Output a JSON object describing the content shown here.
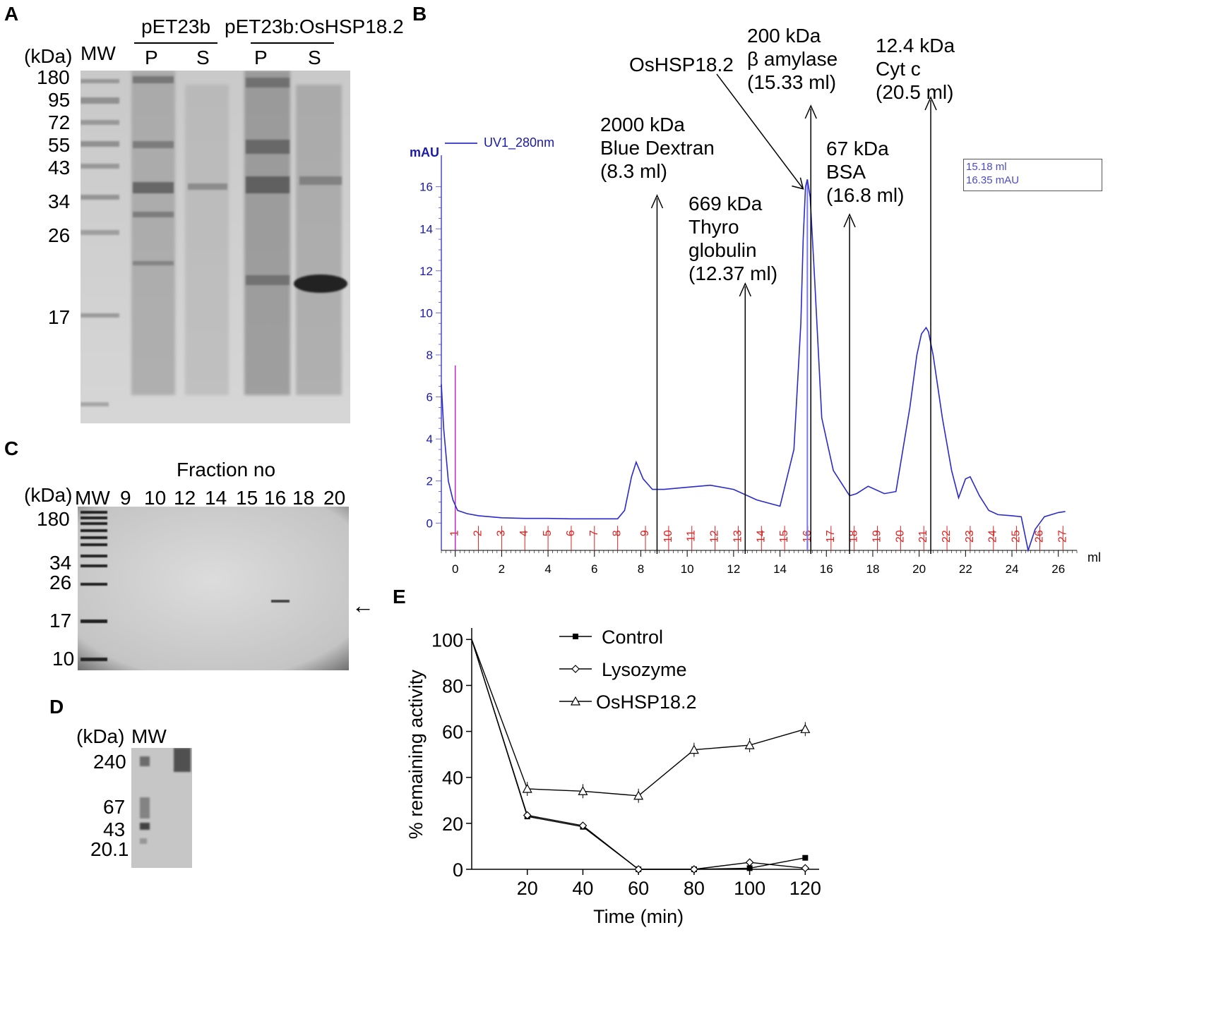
{
  "panels": {
    "A": "A",
    "B": "B",
    "C": "C",
    "D": "D",
    "E": "E"
  },
  "panelA": {
    "header_left": "pET23b",
    "header_right": "pET23b:OsHSP18.2",
    "kda_label": "(kDa)",
    "mw_label": "MW",
    "lanes": [
      "P",
      "S",
      "P",
      "S"
    ],
    "markers": [
      "180",
      "95",
      "72",
      "55",
      "43",
      "34",
      "26",
      "17"
    ]
  },
  "panelB": {
    "y_axis_label": "mAU",
    "legend_label": "UV1_280nm",
    "x_axis_unit": "ml",
    "readout_ml": "15.18 ml",
    "readout_mau": "16.35  mAU",
    "annotations": [
      {
        "lines": [
          "2000 kDa",
          "Blue Dextran",
          "(8.3 ml)"
        ]
      },
      {
        "lines": [
          "669 kDa",
          "Thyro",
          "globulin",
          "(12.37 ml)"
        ]
      },
      {
        "lines": [
          "OsHSP18.2"
        ]
      },
      {
        "lines": [
          "200 kDa",
          "β amylase",
          "(15.33 ml)"
        ]
      },
      {
        "lines": [
          "67 kDa",
          " BSA",
          "(16.8 ml)"
        ]
      },
      {
        "lines": [
          "12.4 kDa",
          "Cyt c",
          "(20.5 ml)"
        ]
      }
    ],
    "chart_data": {
      "type": "line",
      "x_label": "ml",
      "y_label": "mAU",
      "xlim": [
        -0.6,
        26.8
      ],
      "ylim": [
        -1.3,
        17.5
      ],
      "x_ticks": [
        0,
        2,
        4,
        6,
        8,
        10,
        12,
        14,
        16,
        18,
        20,
        22,
        24,
        26
      ],
      "y_ticks": [
        0,
        2,
        4,
        6,
        8,
        10,
        12,
        14,
        16
      ],
      "fractions": [
        "1",
        "2",
        "3",
        "4",
        "5",
        "6",
        "7",
        "8",
        "9",
        "10",
        "11",
        "12",
        "13",
        "14",
        "15",
        "16",
        "17",
        "18",
        "19",
        "20",
        "21",
        "22",
        "23",
        "24",
        "25",
        "26",
        "27"
      ],
      "fraction_x": [
        0,
        1,
        2,
        3,
        4,
        5,
        6,
        7,
        8.2,
        9.2,
        10.2,
        11.2,
        12.2,
        13.2,
        14.2,
        15.2,
        16.2,
        17.2,
        18.2,
        19.2,
        20.2,
        21.2,
        22.2,
        23.2,
        24.2,
        25.2,
        26.2
      ],
      "series": [
        {
          "name": "UV1_280nm",
          "x": [
            -0.6,
            -0.5,
            -0.3,
            -0.1,
            0.1,
            0.5,
            1,
            2,
            3,
            4,
            5,
            6,
            7,
            7.3,
            7.6,
            7.8,
            8.1,
            8.5,
            9,
            10,
            11,
            12,
            13,
            14,
            14.6,
            14.9,
            15.0,
            15.1,
            15.18,
            15.3,
            15.5,
            15.8,
            16.3,
            17.0,
            17.3,
            17.8,
            18.5,
            19.0,
            19.6,
            19.9,
            20.1,
            20.3,
            20.4,
            20.6,
            21.0,
            21.4,
            21.7,
            22.0,
            22.2,
            22.6,
            23.0,
            23.4,
            24.0,
            24.4,
            24.7,
            25.0,
            25.4,
            26.0,
            26.3
          ],
          "y": [
            6.6,
            4.5,
            2.0,
            1.1,
            0.6,
            0.45,
            0.35,
            0.25,
            0.22,
            0.22,
            0.2,
            0.2,
            0.2,
            0.6,
            2.2,
            2.9,
            2.1,
            1.6,
            1.6,
            1.7,
            1.8,
            1.6,
            1.1,
            0.8,
            3.5,
            9.5,
            13.5,
            16.0,
            16.35,
            15.5,
            11.5,
            5.0,
            2.5,
            1.3,
            1.4,
            1.75,
            1.4,
            1.5,
            5.5,
            8.0,
            9.0,
            9.3,
            9.1,
            8.0,
            5.0,
            2.5,
            1.2,
            2.1,
            2.2,
            1.3,
            0.6,
            0.4,
            0.35,
            0.3,
            -1.3,
            -0.3,
            0.3,
            0.5,
            0.55
          ]
        }
      ],
      "marker_line_x": 0,
      "marker_line_y": 7.5,
      "peak_marker_x": 15.18,
      "standard_arrows": [
        {
          "x": 8.7,
          "label_idx": 0
        },
        {
          "x": 12.5,
          "label_idx": 1
        },
        {
          "x": 15.33,
          "label_idx": 3
        },
        {
          "x": 17.0,
          "label_idx": 4
        },
        {
          "x": 20.5,
          "label_idx": 5
        }
      ]
    }
  },
  "panelC": {
    "title": "Fraction no",
    "kda_label": "(kDa)",
    "mw_label": "MW",
    "fractions": [
      "9",
      "10",
      "12",
      "14",
      "15",
      "16",
      "18",
      "20"
    ],
    "markers": [
      "180",
      "34",
      "26",
      "17",
      "10"
    ],
    "arrow": "←"
  },
  "panelD": {
    "kda_label": "(kDa)",
    "mw_label": "MW",
    "markers": [
      "240",
      "67",
      "43",
      "20.1"
    ]
  },
  "panelE": {
    "chart_data": {
      "type": "line",
      "xlabel": "Time (min)",
      "ylabel": "% remaining activity",
      "xlim": [
        0,
        125
      ],
      "ylim": [
        0,
        105
      ],
      "x_ticks": [
        20,
        40,
        60,
        80,
        100,
        120
      ],
      "y_ticks": [
        0,
        20,
        40,
        60,
        80,
        100
      ],
      "legend_position": "top",
      "series": [
        {
          "name": "Control",
          "marker": "square",
          "x": [
            0,
            20,
            40,
            60,
            80,
            100,
            120
          ],
          "y": [
            100,
            23,
            18.5,
            0,
            0,
            0.5,
            5
          ]
        },
        {
          "name": "Lysozyme",
          "marker": "diamond",
          "x": [
            0,
            20,
            40,
            60,
            80,
            100,
            120
          ],
          "y": [
            100,
            23.5,
            19,
            0,
            0,
            3,
            0.5
          ]
        },
        {
          "name": "OsHSP18.2",
          "marker": "triangle",
          "x": [
            0,
            20,
            40,
            60,
            80,
            100,
            120
          ],
          "y": [
            100,
            35,
            34,
            32,
            52,
            54,
            61
          ]
        }
      ]
    }
  }
}
